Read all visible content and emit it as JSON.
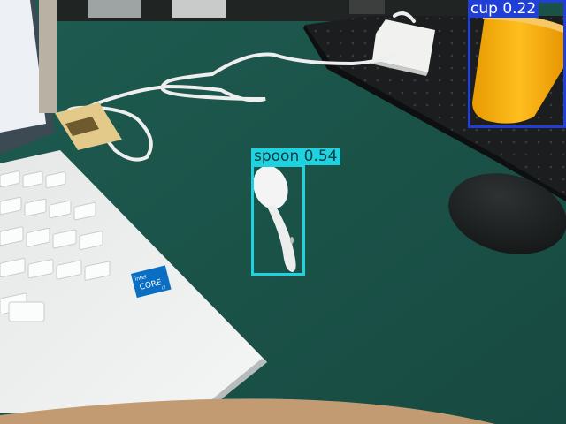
{
  "detections": [
    {
      "label": "cup",
      "score": "0.22",
      "color": "#1f3fd6"
    },
    {
      "label": "spoon",
      "score": "0.54",
      "color": "#1fd2e0"
    }
  ],
  "laptop_badge": {
    "brand": "intel",
    "model": "CORE",
    "tier": "i7"
  }
}
